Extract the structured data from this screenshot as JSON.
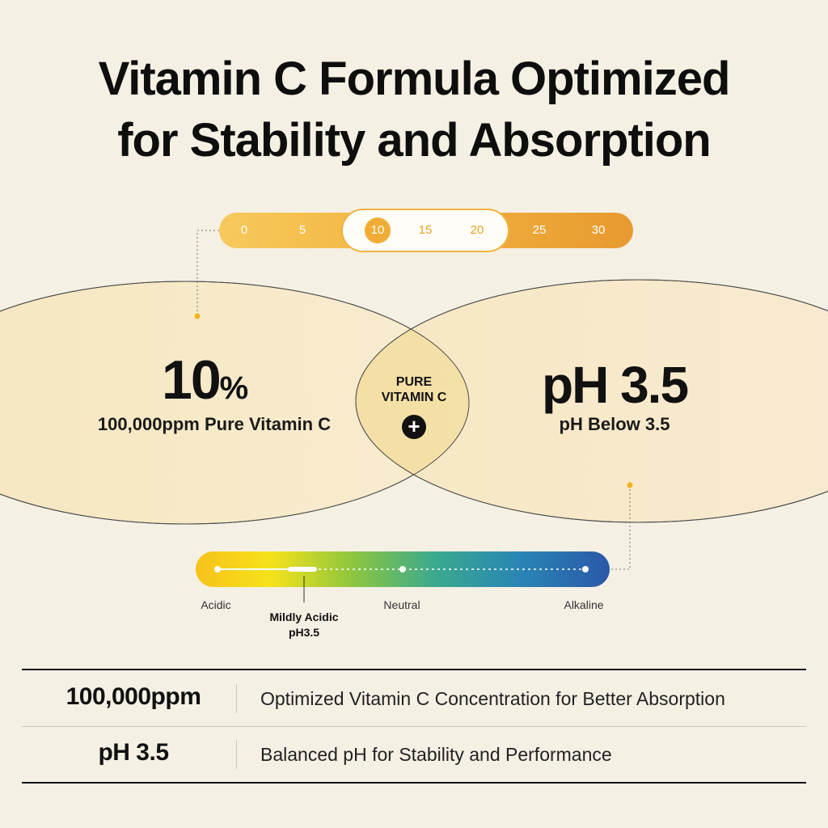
{
  "title": {
    "line1": "Vitamin C Formula Optimized",
    "line2": "for Stability and Absorption"
  },
  "concentration_scale": {
    "ticks": [
      "0",
      "5",
      "10",
      "15",
      "20",
      "25",
      "30"
    ],
    "highlighted": [
      "10",
      "15",
      "20"
    ],
    "selected": "10"
  },
  "left_circle": {
    "value": "10",
    "unit": "%",
    "caption": "100,000ppm Pure Vitamin C"
  },
  "right_circle": {
    "value": "pH 3.5",
    "caption": "pH Below 3.5"
  },
  "center": {
    "line1": "PURE",
    "line2": "VITAMIN C",
    "icon": "plus-icon"
  },
  "ph_scale": {
    "labels": [
      "Acidic",
      "Neutral",
      "Alkaline"
    ],
    "marker_line1": "Mildly Acidic",
    "marker_line2": "pH3.5"
  },
  "table": {
    "rows": [
      {
        "key": "100,000ppm",
        "value": "Optimized Vitamin C Concentration for Better Absorption"
      },
      {
        "key": "pH 3.5",
        "value": "Balanced pH for Stability and Performance"
      }
    ]
  }
}
